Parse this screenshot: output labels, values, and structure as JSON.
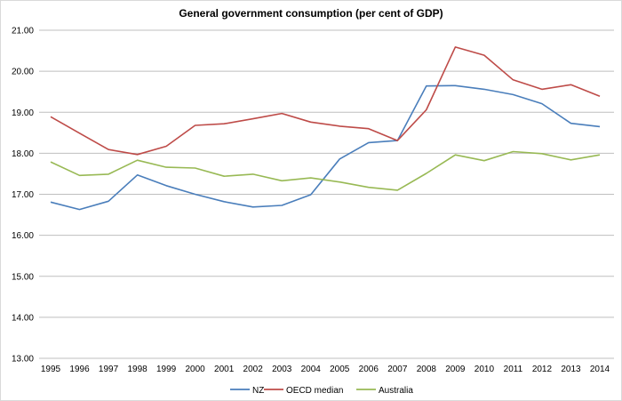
{
  "chart_data": {
    "type": "line",
    "title": "General government consumption (per cent of GDP)",
    "xlabel": "",
    "ylabel": "",
    "x": [
      1995,
      1996,
      1997,
      1998,
      1999,
      2000,
      2001,
      2002,
      2003,
      2004,
      2005,
      2006,
      2007,
      2008,
      2009,
      2010,
      2011,
      2012,
      2013,
      2014
    ],
    "ylim": [
      13,
      21
    ],
    "yticks": [
      "13.00",
      "14.00",
      "15.00",
      "16.00",
      "17.00",
      "18.00",
      "19.00",
      "20.00",
      "21.00"
    ],
    "grid": true,
    "legend_position": "bottom",
    "series": [
      {
        "name": "NZ",
        "color": "#4a7ebb",
        "values": [
          16.81,
          16.63,
          16.83,
          17.47,
          17.21,
          17.0,
          16.82,
          16.69,
          16.73,
          16.99,
          17.86,
          18.26,
          18.31,
          19.64,
          19.65,
          19.56,
          19.43,
          19.21,
          18.73,
          18.65
        ]
      },
      {
        "name": "OECD median",
        "color": "#be4b48",
        "values": [
          18.89,
          18.49,
          18.09,
          17.97,
          18.17,
          18.68,
          18.72,
          18.84,
          18.97,
          18.76,
          18.66,
          18.6,
          18.31,
          19.06,
          20.59,
          20.39,
          19.79,
          19.56,
          19.67,
          19.39
        ]
      },
      {
        "name": "Australia",
        "color": "#98b954",
        "values": [
          17.79,
          17.46,
          17.49,
          17.83,
          17.66,
          17.64,
          17.44,
          17.49,
          17.33,
          17.4,
          17.3,
          17.17,
          17.1,
          17.51,
          17.96,
          17.82,
          18.04,
          17.99,
          17.84,
          17.96
        ]
      }
    ]
  }
}
